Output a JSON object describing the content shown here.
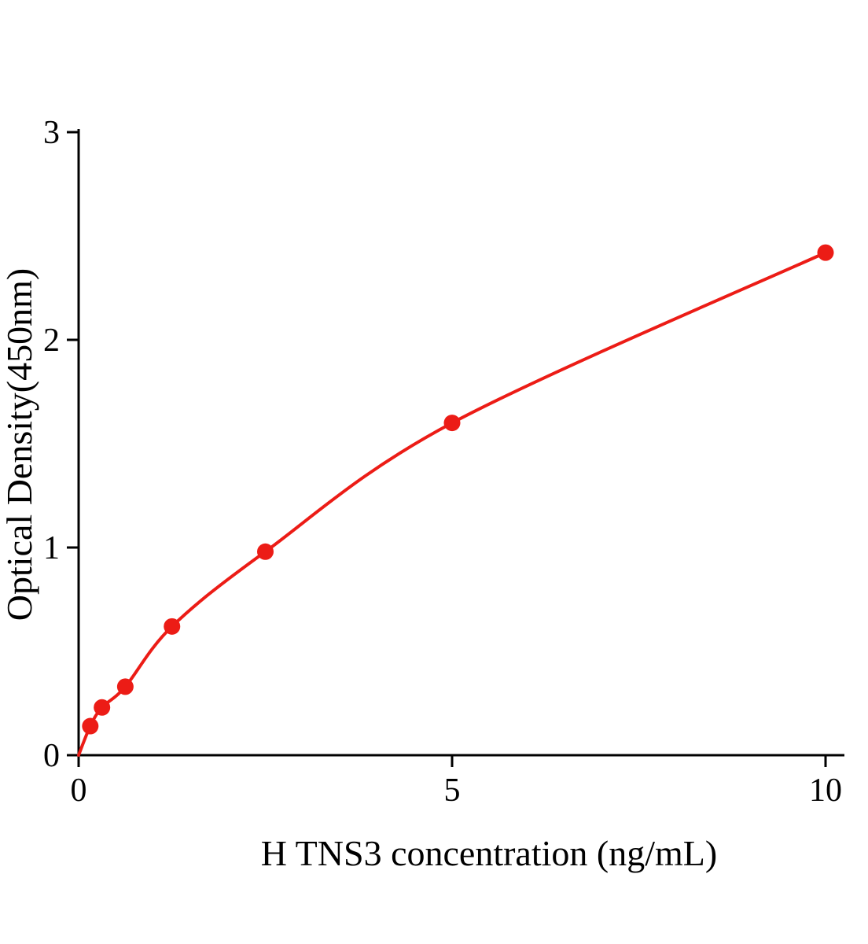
{
  "chart_data": {
    "type": "line",
    "title": "",
    "xlabel": "H TNS3 concentration (ng/mL)",
    "ylabel": "Optical Density(450nm)",
    "x": [
      0.156,
      0.3125,
      0.625,
      1.25,
      2.5,
      5,
      10
    ],
    "y": [
      0.14,
      0.23,
      0.33,
      0.62,
      0.98,
      1.6,
      2.42
    ],
    "curve_start": [
      0,
      0
    ],
    "xlim": [
      0,
      10
    ],
    "ylim": [
      0,
      3
    ],
    "x_ticks": [
      0,
      5,
      10
    ],
    "y_ticks": [
      0,
      1,
      2,
      3
    ],
    "grid": "off",
    "legend": "none",
    "line_color": "#ec1c16",
    "marker_color": "#ec1c16",
    "axis_color": "#000000"
  }
}
